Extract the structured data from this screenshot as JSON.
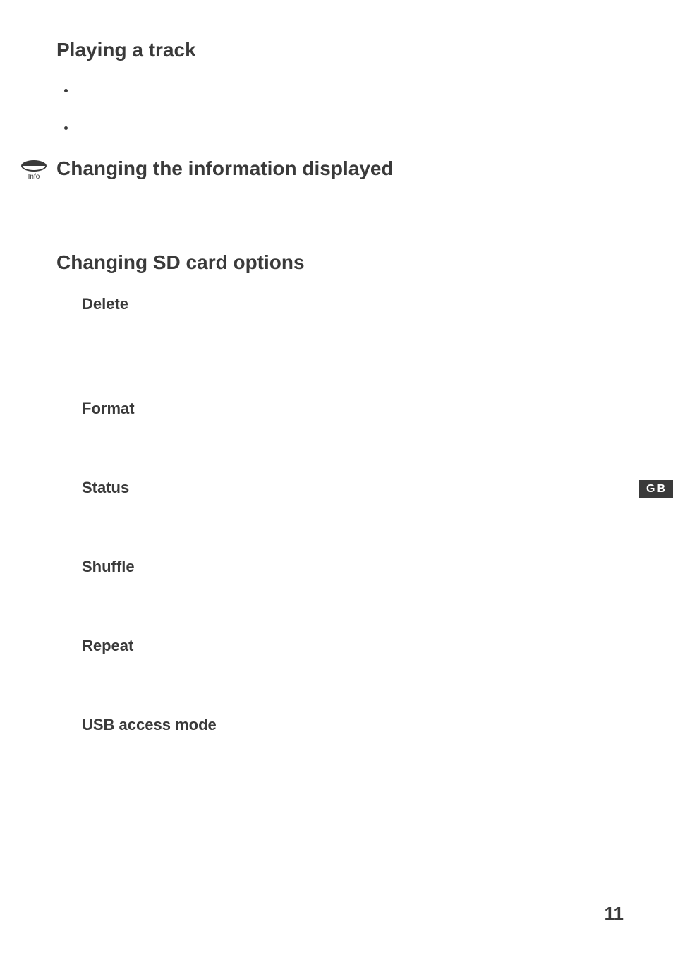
{
  "section1": {
    "title": "Playing a track",
    "bullets": [
      "",
      ""
    ]
  },
  "section2": {
    "icon_label": "Info",
    "title": "Changing the information displayed"
  },
  "section3": {
    "title": "Changing SD card options",
    "options": [
      "Delete",
      "Format",
      "Status",
      "Shuffle",
      "Repeat",
      "USB access mode"
    ]
  },
  "language_badge": "GB",
  "page_number": "11",
  "colors": {
    "text": "#3a3a3a",
    "background": "#ffffff",
    "badge_bg": "#3a3a3a",
    "badge_fg": "#ffffff"
  },
  "typography": {
    "h1_fontsize": 28,
    "h2_fontsize": 22,
    "badge_fontsize": 16,
    "pagenum_fontsize": 26,
    "info_label_fontsize": 10
  }
}
